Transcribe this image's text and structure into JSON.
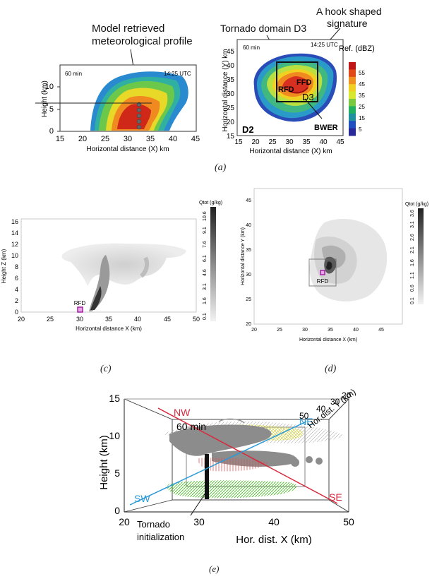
{
  "figure_a": {
    "caption": "(a)",
    "annotations": {
      "model_profile_line1": "Model retrieved",
      "model_profile_line2": "meteorological profile",
      "tornado_domain": "Tornado domain D3",
      "hook_line1": "A hook shaped",
      "hook_line2": "signature"
    },
    "left": {
      "time": "60 min",
      "utc": "14:25 UTC",
      "ylabel": "Height (km)",
      "xlabel": "Horizontal distance (X) km",
      "xticks": [
        "15",
        "20",
        "25",
        "30",
        "35",
        "40",
        "45"
      ],
      "yticks": [
        "0",
        "5",
        "10"
      ]
    },
    "right": {
      "time": "60 min",
      "utc": "14:25 UTC",
      "ylabel": "Horizontal distance (Y) km",
      "xlabel": "Horizontal distance (X) km",
      "xticks": [
        "15",
        "20",
        "25",
        "30",
        "35",
        "40",
        "45"
      ],
      "yticks": [
        "15",
        "20",
        "25",
        "30",
        "35",
        "40",
        "45"
      ],
      "labels": {
        "rfd": "RFD",
        "ffd": "FFD",
        "d3": "D3",
        "d2": "D2",
        "bwer": "BWER"
      },
      "colorbar": {
        "title": "Ref. (dBZ)",
        "ticks": [
          "55",
          "45",
          "35",
          "25",
          "15",
          "5"
        ],
        "colors": [
          "#c01818",
          "#e04818",
          "#f09020",
          "#f0d020",
          "#d8e830",
          "#78c840",
          "#20b060",
          "#2090a0",
          "#2050c0",
          "#282898"
        ]
      }
    }
  },
  "figure_c": {
    "caption": "(c)",
    "ylabel": "Height  Z (km)",
    "xlabel": "Horizontal distance X (km)",
    "xticks": [
      "20",
      "25",
      "30",
      "35",
      "40",
      "45",
      "50"
    ],
    "yticks": [
      "0",
      "2",
      "4",
      "6",
      "8",
      "10",
      "12",
      "14",
      "16"
    ],
    "marker_label": "RFD",
    "colorbar": {
      "title": "Qtot (g/kg)",
      "ticks": [
        "0.1",
        "1.6",
        "3.1",
        "4.6",
        "6.1",
        "7.6",
        "9.1",
        "10.6"
      ]
    }
  },
  "figure_d": {
    "caption": "(d)",
    "ylabel": "Horizontal distance Y (km)",
    "xlabel": "Horizontal distance X (km)",
    "xticks": [
      "20",
      "25",
      "30",
      "35",
      "40",
      "45"
    ],
    "yticks": [
      "20",
      "25",
      "30",
      "35",
      "40",
      "45"
    ],
    "marker_label": "RFD",
    "colorbar": {
      "title": "Qtot (g/kg)",
      "ticks": [
        "0.1",
        "0.6",
        "1.1",
        "1.6",
        "2.1",
        "2.6",
        "3.1",
        "3.6"
      ]
    }
  },
  "figure_e": {
    "caption": "(e)",
    "time": "60 min",
    "ylabel": "Height (km)",
    "xlabel": "Hor. dist.  X (km)",
    "ylabel2": "Hor.dist. Y (km)",
    "yticks": [
      "0",
      "5",
      "10",
      "15"
    ],
    "xticks": [
      "20",
      "30",
      "40",
      "50"
    ],
    "depth_ticks": [
      "50",
      "40",
      "30",
      "20"
    ],
    "directions": {
      "nw": "NW",
      "ne": "NE",
      "sw": "SW",
      "se": "SE"
    },
    "direction_colors": {
      "nw_se": "#d8283c",
      "sw_ne": "#2a9ad8"
    },
    "annotation_line1": "Tornado",
    "annotation_line2": "initialization"
  }
}
